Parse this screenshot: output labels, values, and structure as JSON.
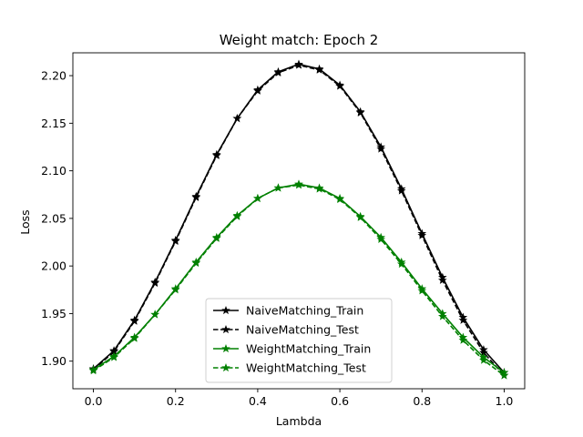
{
  "chart_data": {
    "type": "line",
    "title": "Weight match: Epoch 2",
    "xlabel": "Lambda",
    "ylabel": "Loss",
    "xlim": [
      -0.05,
      1.05
    ],
    "ylim": [
      1.871,
      2.224
    ],
    "xticks": [
      0.0,
      0.2,
      0.4,
      0.6,
      0.8,
      1.0
    ],
    "xtick_labels": [
      "0.0",
      "0.2",
      "0.4",
      "0.6",
      "0.8",
      "1.0"
    ],
    "yticks": [
      1.9,
      1.95,
      2.0,
      2.05,
      2.1,
      2.15,
      2.2
    ],
    "ytick_labels": [
      "1.90",
      "1.95",
      "2.00",
      "2.05",
      "2.10",
      "2.15",
      "2.20"
    ],
    "grid": false,
    "legend_position": "lower center",
    "x": [
      0.0,
      0.05,
      0.1,
      0.15,
      0.2,
      0.25,
      0.3,
      0.35,
      0.4,
      0.45,
      0.5,
      0.55,
      0.6,
      0.65,
      0.7,
      0.75,
      0.8,
      0.85,
      0.9,
      0.95,
      1.0
    ],
    "series": [
      {
        "name": "NaiveMatching_Train",
        "color": "#000000",
        "linestyle": "solid",
        "marker": "star",
        "values": [
          1.892,
          1.911,
          1.943,
          1.983,
          2.027,
          2.073,
          2.117,
          2.155,
          2.185,
          2.204,
          2.212,
          2.207,
          2.19,
          2.162,
          2.125,
          2.081,
          2.034,
          1.988,
          1.946,
          1.912,
          1.888
        ]
      },
      {
        "name": "NaiveMatching_Test",
        "color": "#000000",
        "linestyle": "dashed",
        "marker": "star",
        "values": [
          1.891,
          1.91,
          1.942,
          1.982,
          2.026,
          2.072,
          2.116,
          2.155,
          2.184,
          2.203,
          2.211,
          2.206,
          2.189,
          2.161,
          2.123,
          2.079,
          2.032,
          1.985,
          1.943,
          1.909,
          1.885
        ]
      },
      {
        "name": "WeightMatching_Train",
        "color": "#008000",
        "linestyle": "solid",
        "marker": "star",
        "values": [
          1.891,
          1.905,
          1.925,
          1.949,
          1.976,
          2.004,
          2.03,
          2.053,
          2.071,
          2.082,
          2.086,
          2.082,
          2.071,
          2.052,
          2.03,
          2.004,
          1.976,
          1.95,
          1.925,
          1.904,
          1.888
        ]
      },
      {
        "name": "WeightMatching_Test",
        "color": "#008000",
        "linestyle": "dashed",
        "marker": "star",
        "values": [
          1.89,
          1.904,
          1.924,
          1.949,
          1.975,
          2.003,
          2.029,
          2.052,
          2.071,
          2.082,
          2.085,
          2.081,
          2.07,
          2.051,
          2.028,
          2.002,
          1.974,
          1.947,
          1.922,
          1.901,
          1.885
        ]
      }
    ]
  }
}
